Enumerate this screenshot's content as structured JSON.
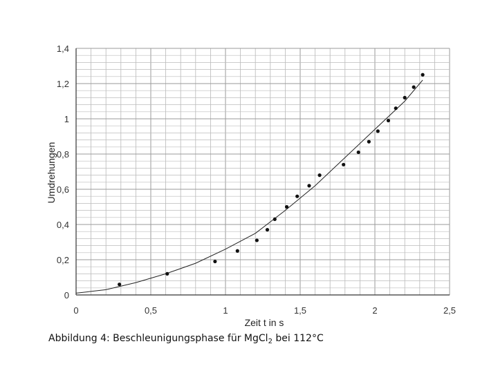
{
  "chart_data": {
    "type": "scatter",
    "xlabel": "Zeit t in s",
    "ylabel": "Umdrehungen",
    "xlim": [
      0,
      2.5
    ],
    "ylim": [
      0,
      1.4
    ],
    "grid": true,
    "x_ticks": [
      "0",
      "0,5",
      "1",
      "1,5",
      "2",
      "2,5"
    ],
    "y_ticks": [
      "0",
      "0,2",
      "0,4",
      "0,6",
      "0,8",
      "1",
      "1,2",
      "1,4"
    ],
    "series": [
      {
        "kind": "points",
        "points": [
          [
            0.29,
            0.06
          ],
          [
            0.61,
            0.12
          ],
          [
            0.93,
            0.19
          ],
          [
            1.08,
            0.25
          ],
          [
            1.21,
            0.31
          ],
          [
            1.28,
            0.37
          ],
          [
            1.33,
            0.43
          ],
          [
            1.41,
            0.5
          ],
          [
            1.48,
            0.56
          ],
          [
            1.56,
            0.62
          ],
          [
            1.63,
            0.68
          ],
          [
            1.79,
            0.74
          ],
          [
            1.89,
            0.81
          ],
          [
            1.96,
            0.87
          ],
          [
            2.02,
            0.93
          ],
          [
            2.09,
            0.99
          ],
          [
            2.14,
            1.06
          ],
          [
            2.2,
            1.12
          ],
          [
            2.26,
            1.18
          ],
          [
            2.32,
            1.25
          ]
        ]
      },
      {
        "kind": "fit",
        "points": [
          [
            0.0,
            0.01
          ],
          [
            0.2,
            0.03
          ],
          [
            0.4,
            0.07
          ],
          [
            0.6,
            0.12
          ],
          [
            0.8,
            0.18
          ],
          [
            1.0,
            0.26
          ],
          [
            1.2,
            0.35
          ],
          [
            1.4,
            0.48
          ],
          [
            1.6,
            0.62
          ],
          [
            1.8,
            0.78
          ],
          [
            2.0,
            0.94
          ],
          [
            2.2,
            1.1
          ],
          [
            2.3,
            1.2
          ],
          [
            2.32,
            1.22
          ]
        ]
      }
    ]
  },
  "caption": {
    "prefix": "Abbildung 4: Beschleunigungsphase für Mg",
    "element": "Cl",
    "subscript": "2",
    "suffix": " bei 112°C"
  }
}
